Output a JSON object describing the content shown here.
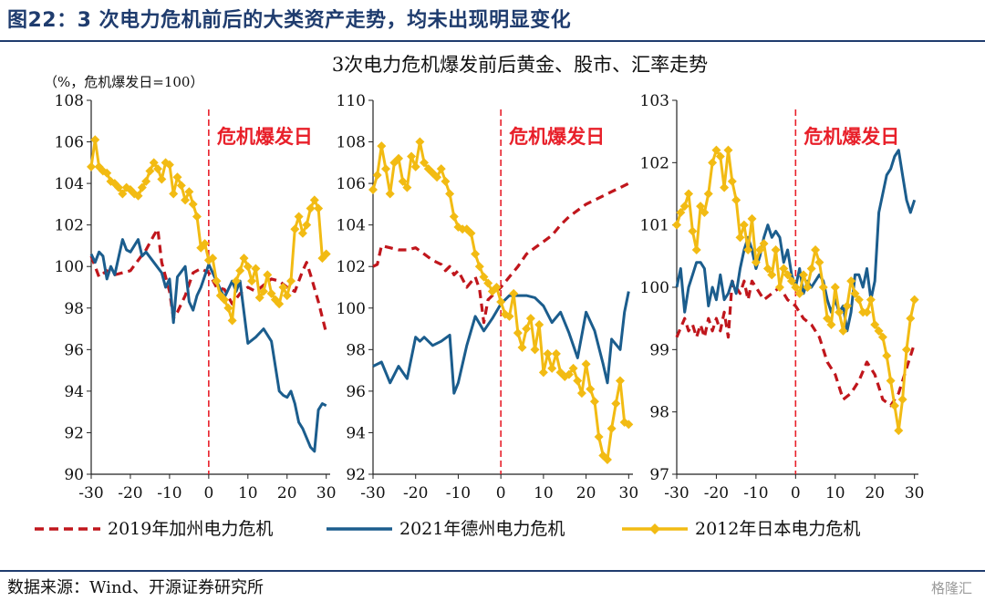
{
  "figure_title": "图22：3 次电力危机前后的大类资产走势，均未出现明显变化",
  "source": "数据来源：Wind、开源证券研究所",
  "watermark": "格隆汇",
  "colors": {
    "ca": "#c0161c",
    "de": "#1b5d8d",
    "jp": "#f2bb13",
    "crisis": "#e8202a",
    "title_blue": "#1f3c6e"
  },
  "chart_data": [
    {
      "type": "line",
      "title": "3次电力危机爆发前后黄金、股市、汇率走势",
      "ylabel": "（%，危机爆发日=100）",
      "annotation": "危机爆发日",
      "xlim": [
        -30,
        31
      ],
      "ylim": [
        90,
        108
      ],
      "xticks": [
        "-30",
        "-20",
        "-10",
        "0",
        "10",
        "20",
        "30"
      ],
      "yticks": [
        "90",
        "92",
        "94",
        "96",
        "98",
        "100",
        "102",
        "104",
        "106",
        "108"
      ],
      "series": [
        {
          "name": "2019年加州电力危机",
          "x": [
            -30,
            -28,
            -26,
            -24,
            -22,
            -20,
            -18,
            -16,
            -14,
            -13,
            -12,
            -10,
            -9,
            -8,
            -6,
            -4,
            -2,
            0,
            2,
            4,
            6,
            8,
            10,
            12,
            14,
            16,
            18,
            20,
            22,
            24,
            25,
            26,
            28,
            30
          ],
          "values": [
            100.5,
            99.5,
            99.8,
            99.6,
            99.7,
            99.8,
            100.3,
            100.8,
            101.5,
            101.8,
            100.2,
            98.8,
            97.5,
            97.8,
            98.6,
            99.7,
            99.9,
            99.7,
            99.0,
            98.9,
            98.2,
            98.7,
            99.0,
            98.8,
            99.1,
            99.4,
            99.3,
            99.0,
            98.8,
            99.8,
            100.2,
            99.6,
            98.3,
            96.8
          ]
        },
        {
          "name": "2021年德州电力危机",
          "x": [
            -30,
            -29,
            -28,
            -27,
            -26,
            -25,
            -24,
            -22,
            -21,
            -20,
            -18,
            -17,
            -16,
            -14,
            -12,
            -11,
            -10,
            -9,
            -8,
            -6,
            -5,
            -4,
            -3,
            -2,
            0,
            2,
            4,
            6,
            7,
            8,
            10,
            12,
            14,
            16,
            18,
            19,
            20,
            21,
            22,
            23,
            24,
            26,
            27,
            28,
            29,
            30
          ],
          "values": [
            100.6,
            100.2,
            100.7,
            100.5,
            99.4,
            100.0,
            99.6,
            101.3,
            100.8,
            100.7,
            101.3,
            100.5,
            100.7,
            100.2,
            99.7,
            99.0,
            99.4,
            97.3,
            99.5,
            100.0,
            98.3,
            97.9,
            98.6,
            99.0,
            100.1,
            99.3,
            98.5,
            99.3,
            98.8,
            99.3,
            96.3,
            96.6,
            97.0,
            96.4,
            94.0,
            93.8,
            93.7,
            94.0,
            93.4,
            92.5,
            92.2,
            91.3,
            91.1,
            93.1,
            93.4,
            93.3
          ]
        },
        {
          "name": "2012年日本电力危机",
          "x": [
            -30,
            -29,
            -28,
            -27,
            -26,
            -25,
            -24,
            -23,
            -22,
            -21,
            -20,
            -19,
            -18,
            -17,
            -16,
            -15,
            -14,
            -13,
            -12,
            -11,
            -10,
            -9,
            -8,
            -7,
            -6,
            -5,
            -4,
            -3,
            -2,
            -1,
            0,
            1,
            2,
            3,
            4,
            5,
            6,
            7,
            8,
            9,
            10,
            11,
            12,
            13,
            14,
            15,
            16,
            17,
            18,
            19,
            20,
            21,
            22,
            23,
            24,
            25,
            26,
            27,
            28,
            29,
            30
          ],
          "values": [
            104.8,
            106.1,
            104.8,
            104.6,
            104.5,
            104.1,
            104.0,
            103.8,
            103.5,
            103.8,
            103.7,
            103.5,
            103.4,
            103.8,
            104.1,
            104.6,
            105.0,
            104.7,
            104.2,
            105.0,
            104.9,
            103.5,
            104.3,
            103.9,
            103.2,
            103.6,
            103.0,
            102.4,
            100.9,
            101.1,
            100.3,
            100.4,
            99.3,
            98.6,
            98.4,
            98.0,
            97.4,
            99.3,
            99.8,
            100.4,
            100.0,
            99.3,
            99.9,
            98.5,
            98.8,
            99.6,
            98.7,
            98.4,
            98.2,
            99.0,
            98.6,
            99.3,
            101.8,
            102.4,
            101.6,
            102.0,
            102.8,
            103.2,
            102.8,
            100.4,
            100.6
          ]
        }
      ]
    },
    {
      "type": "line",
      "xlim": [
        -30,
        31
      ],
      "ylim": [
        92,
        110
      ],
      "xticks": [
        "-30",
        "-20",
        "-10",
        "0",
        "10",
        "20",
        "30"
      ],
      "yticks": [
        "92",
        "94",
        "96",
        "98",
        "100",
        "102",
        "104",
        "106",
        "108",
        "110"
      ],
      "annotation": "危机爆发日",
      "series": [
        {
          "name": "2019年加州电力危机",
          "x": [
            -30,
            -29,
            -28,
            -26,
            -24,
            -22,
            -20,
            -18,
            -16,
            -14,
            -13,
            -12,
            -11,
            -10,
            -8,
            -6,
            -5,
            -4,
            -3,
            -2,
            0,
            2,
            4,
            6,
            8,
            10,
            12,
            14,
            16,
            18,
            20,
            22,
            24,
            26,
            28,
            30
          ],
          "values": [
            102.0,
            102.1,
            103.0,
            102.9,
            102.8,
            102.8,
            102.9,
            102.6,
            102.3,
            102.1,
            101.8,
            102.0,
            101.6,
            101.8,
            101.0,
            101.5,
            100.9,
            99.3,
            100.4,
            100.6,
            101.0,
            101.5,
            102.0,
            102.6,
            102.9,
            103.2,
            103.5,
            104.0,
            104.4,
            104.7,
            105.0,
            105.2,
            105.4,
            105.6,
            105.8,
            106.0
          ]
        },
        {
          "name": "2021年德州电力危机",
          "x": [
            -30,
            -28,
            -26,
            -24,
            -22,
            -20,
            -19,
            -18,
            -16,
            -14,
            -12,
            -11,
            -10,
            -8,
            -6,
            -4,
            -2,
            0,
            2,
            4,
            6,
            8,
            10,
            12,
            14,
            16,
            18,
            20,
            22,
            24,
            25,
            26,
            28,
            29,
            30
          ],
          "values": [
            97.2,
            97.4,
            96.4,
            97.2,
            96.6,
            98.6,
            98.4,
            98.6,
            98.2,
            98.4,
            98.7,
            95.9,
            96.4,
            98.2,
            99.6,
            98.9,
            99.5,
            100.2,
            100.6,
            100.6,
            100.6,
            100.5,
            100.1,
            99.3,
            99.8,
            98.8,
            97.6,
            99.8,
            98.9,
            97.3,
            96.4,
            98.5,
            98.0,
            99.8,
            100.8
          ]
        },
        {
          "name": "2012年日本电力危机",
          "x": [
            -30,
            -29,
            -28,
            -27,
            -26,
            -25,
            -24,
            -23,
            -22,
            -21,
            -20,
            -19,
            -18,
            -17,
            -16,
            -15,
            -14,
            -13,
            -12,
            -11,
            -10,
            -9,
            -8,
            -7,
            -6,
            -5,
            -4,
            -3,
            -2,
            -1,
            0,
            1,
            2,
            3,
            4,
            5,
            6,
            7,
            8,
            9,
            10,
            11,
            12,
            13,
            14,
            15,
            16,
            17,
            18,
            19,
            20,
            21,
            22,
            23,
            24,
            25,
            26,
            27,
            28,
            29,
            30
          ],
          "values": [
            105.7,
            106.4,
            107.8,
            106.7,
            105.5,
            107.0,
            107.2,
            106.1,
            105.8,
            107.3,
            106.8,
            108.0,
            107.0,
            106.7,
            106.5,
            106.3,
            106.7,
            106.1,
            105.5,
            104.4,
            103.9,
            103.8,
            103.8,
            103.6,
            102.6,
            102.0,
            101.5,
            101.2,
            100.8,
            101.0,
            100.3,
            99.7,
            99.6,
            100.7,
            98.8,
            98.1,
            99.0,
            99.5,
            98.0,
            99.2,
            96.9,
            97.8,
            97.1,
            97.8,
            96.9,
            96.7,
            96.8,
            97.1,
            96.5,
            95.9,
            97.3,
            96.1,
            95.5,
            93.8,
            92.9,
            92.7,
            94.2,
            95.4,
            96.5,
            94.5,
            94.4
          ]
        }
      ]
    },
    {
      "type": "line",
      "xlim": [
        -30,
        31
      ],
      "ylim": [
        97,
        103
      ],
      "xticks": [
        "-30",
        "-20",
        "-10",
        "0",
        "10",
        "20",
        "30"
      ],
      "yticks": [
        "97",
        "98",
        "99",
        "100",
        "101",
        "102",
        "103"
      ],
      "annotation": "危机爆发日",
      "series": [
        {
          "name": "2019年加州电力危机",
          "x": [
            -30,
            -28,
            -27,
            -26,
            -25,
            -24,
            -23,
            -22,
            -21,
            -20,
            -19,
            -18,
            -17,
            -16,
            -15,
            -14,
            -13,
            -12,
            -11,
            -10,
            -8,
            -6,
            -4,
            -2,
            0,
            2,
            4,
            6,
            8,
            10,
            12,
            14,
            16,
            18,
            19,
            20,
            21,
            22,
            24,
            26,
            28,
            30
          ],
          "values": [
            99.2,
            99.5,
            99.3,
            99.4,
            99.2,
            99.4,
            99.2,
            99.5,
            99.3,
            99.5,
            99.3,
            99.6,
            99.2,
            100.1,
            100.0,
            99.9,
            100.1,
            99.8,
            100.1,
            100.0,
            99.8,
            99.9,
            100.0,
            99.8,
            99.7,
            99.5,
            99.4,
            99.2,
            98.8,
            98.6,
            98.2,
            98.3,
            98.5,
            98.8,
            98.7,
            98.6,
            98.4,
            98.2,
            98.1,
            98.3,
            98.7,
            99.1
          ]
        },
        {
          "name": "2021年德州电力危机",
          "x": [
            -30,
            -29,
            -28,
            -27,
            -26,
            -25,
            -24,
            -23,
            -22,
            -21,
            -20,
            -19,
            -18,
            -17,
            -16,
            -15,
            -14,
            -13,
            -12,
            -11,
            -10,
            -9,
            -8,
            -7,
            -6,
            -5,
            -4,
            -3,
            -2,
            -1,
            0,
            1,
            2,
            3,
            4,
            5,
            6,
            7,
            8,
            9,
            10,
            11,
            12,
            13,
            14,
            15,
            16,
            17,
            18,
            19,
            20,
            21,
            22,
            23,
            24,
            25,
            26,
            27,
            28,
            29,
            30
          ],
          "values": [
            100.0,
            100.3,
            99.6,
            100.0,
            100.2,
            100.4,
            100.4,
            100.3,
            99.7,
            100.0,
            99.8,
            100.2,
            99.8,
            99.9,
            100.1,
            99.9,
            100.3,
            100.6,
            100.8,
            100.6,
            100.3,
            100.5,
            100.8,
            101.0,
            100.8,
            100.9,
            100.8,
            100.4,
            100.6,
            100.2,
            100.0,
            100.3,
            99.9,
            100.1,
            100.0,
            100.1,
            100.2,
            100.1,
            99.8,
            99.6,
            99.8,
            99.6,
            99.7,
            99.3,
            99.6,
            100.2,
            100.2,
            100.0,
            100.3,
            99.8,
            100.1,
            101.2,
            101.5,
            101.8,
            101.9,
            102.1,
            102.2,
            101.8,
            101.4,
            101.2,
            101.4
          ]
        },
        {
          "name": "2012年日本电力危机",
          "x": [
            -30,
            -29,
            -28,
            -27,
            -26,
            -25,
            -24,
            -23,
            -22,
            -21,
            -20,
            -19,
            -18,
            -17,
            -16,
            -15,
            -14,
            -13,
            -12,
            -11,
            -10,
            -9,
            -8,
            -7,
            -6,
            -5,
            -4,
            -3,
            -2,
            -1,
            0,
            1,
            2,
            3,
            4,
            5,
            6,
            7,
            8,
            9,
            10,
            11,
            12,
            13,
            14,
            15,
            16,
            17,
            18,
            19,
            20,
            21,
            22,
            23,
            24,
            25,
            26,
            27,
            28,
            29,
            30
          ],
          "values": [
            101.0,
            101.2,
            101.3,
            101.5,
            100.9,
            100.6,
            101.3,
            101.2,
            101.5,
            102.0,
            102.2,
            102.1,
            101.6,
            102.2,
            101.7,
            101.4,
            100.8,
            101.0,
            100.6,
            101.1,
            100.4,
            100.6,
            100.7,
            100.3,
            100.2,
            100.6,
            100.0,
            100.3,
            100.2,
            100.1,
            100.0,
            99.9,
            100.2,
            100.0,
            100.3,
            100.6,
            100.4,
            100.0,
            99.5,
            99.4,
            100.0,
            99.6,
            99.3,
            99.7,
            100.1,
            99.9,
            99.8,
            99.6,
            99.6,
            99.8,
            99.4,
            99.3,
            99.2,
            98.9,
            98.5,
            98.1,
            97.7,
            98.2,
            99.0,
            99.5,
            99.8
          ]
        }
      ]
    }
  ]
}
